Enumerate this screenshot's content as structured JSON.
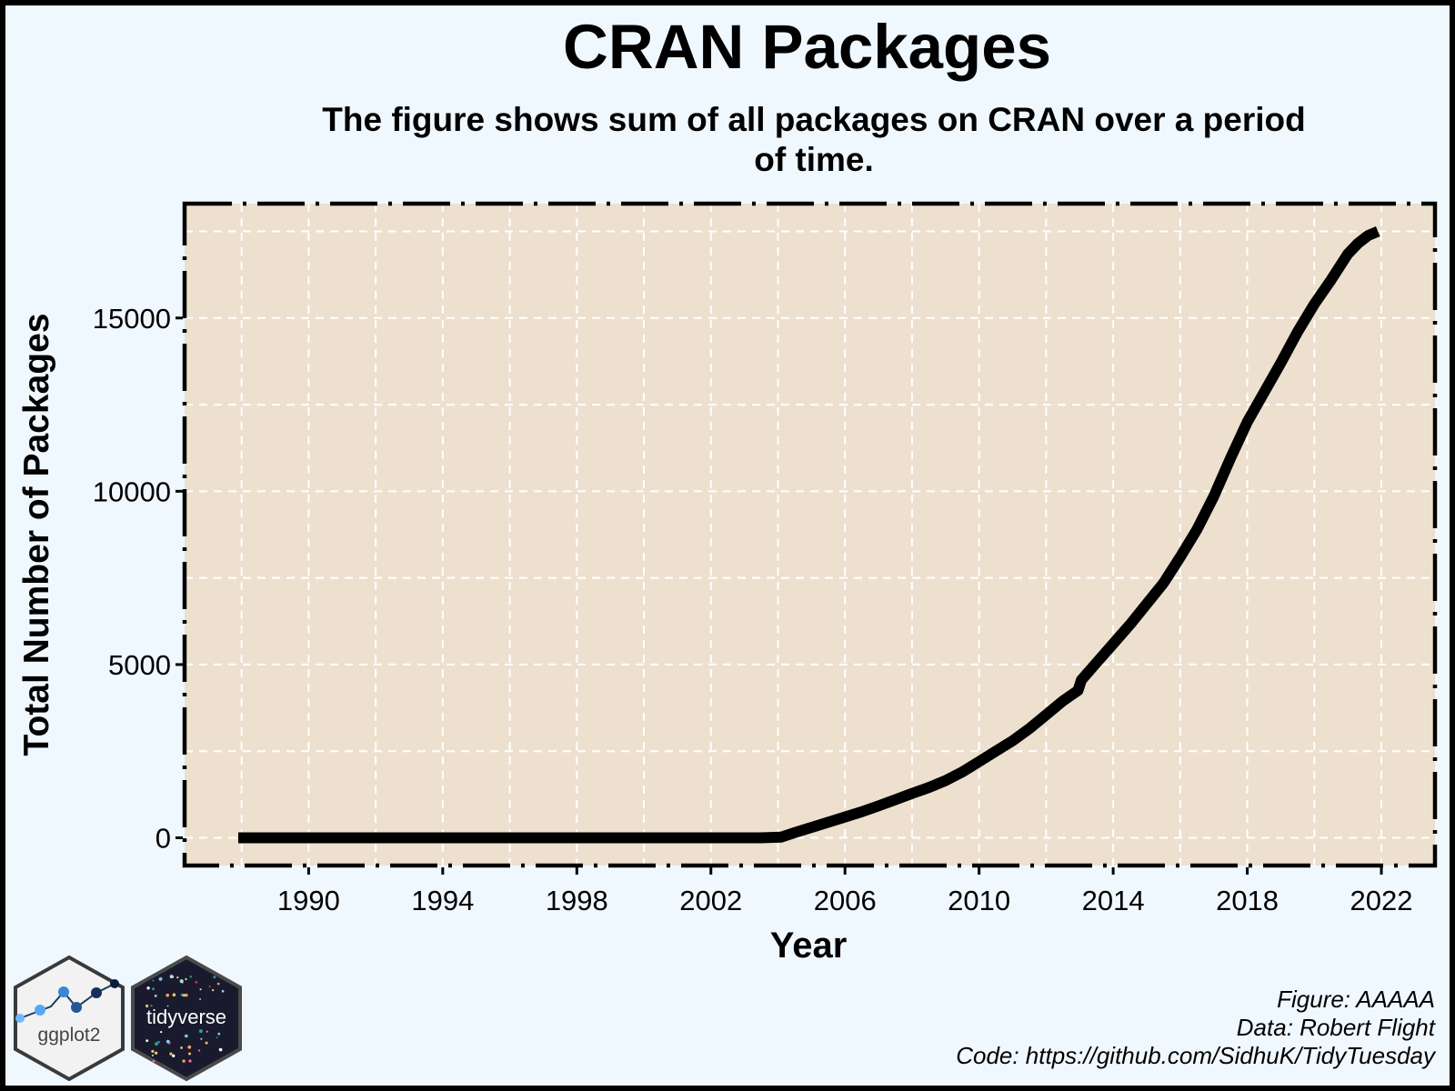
{
  "header": {
    "title": "CRAN Packages",
    "subtitle": "The figure shows sum of all packages on CRAN over a period of time."
  },
  "caption": {
    "figure": "Figure: AAAAA",
    "data": "Data: Robert Flight",
    "code": "Code: https://github.com/SidhuK/TidyTuesday"
  },
  "logos": {
    "ggplot2": "ggplot2",
    "tidyverse": "tidyverse"
  },
  "colors": {
    "page_background": "#f0f8ff",
    "panel_background": "#ede0cf",
    "grid": "#ffffff",
    "line": "#000000"
  },
  "chart_data": {
    "type": "line",
    "title": "CRAN Packages",
    "subtitle": "The figure shows sum of all packages on CRAN over a period of time.",
    "xlabel": "Year",
    "ylabel": "Total Number of Packages",
    "xlim": [
      1986.3,
      2023.6
    ],
    "ylim": [
      -800,
      18300
    ],
    "x_ticks": [
      1990,
      1994,
      1998,
      2002,
      2006,
      2010,
      2014,
      2018,
      2022
    ],
    "y_ticks": [
      0,
      5000,
      10000,
      15000
    ],
    "grid": true,
    "grid_style": "dashed",
    "legend": "none",
    "series": [
      {
        "x": [
          1987.9,
          1990,
          1995,
          2000,
          2003.5,
          2004.1,
          2004.5,
          2005,
          2005.5,
          2006,
          2006.5,
          2007,
          2007.5,
          2008,
          2008.5,
          2009,
          2009.5,
          2010,
          2010.5,
          2011,
          2011.5,
          2012,
          2012.5,
          2012.95,
          2013.05,
          2013.5,
          2014,
          2014.5,
          2015,
          2015.5,
          2016,
          2016.5,
          2017,
          2017.5,
          2018,
          2018.5,
          2019,
          2019.5,
          2020,
          2020.5,
          2021,
          2021.3,
          2021.6,
          2021.9
        ],
        "y": [
          0,
          0,
          0,
          0,
          0,
          20,
          150,
          300,
          450,
          600,
          750,
          920,
          1100,
          1280,
          1450,
          1650,
          1900,
          2200,
          2500,
          2800,
          3150,
          3550,
          3950,
          4250,
          4550,
          5050,
          5600,
          6150,
          6750,
          7350,
          8100,
          8900,
          9850,
          10950,
          12000,
          12850,
          13700,
          14600,
          15400,
          16100,
          16850,
          17150,
          17380,
          17500
        ]
      }
    ]
  }
}
